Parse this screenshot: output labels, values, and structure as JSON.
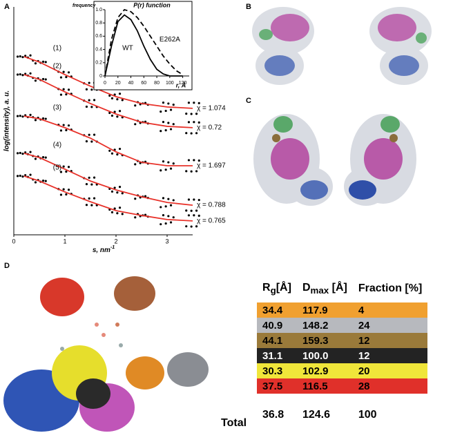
{
  "panels": {
    "a": "A",
    "b": "B",
    "c": "C",
    "d": "D"
  },
  "chart_data": [
    {
      "type": "line",
      "x_label": "s, nm",
      "x_label_sup": "-1",
      "y_label": "log(intensity), a. u.",
      "xlim": [
        0,
        3.5
      ],
      "xticks": [
        0,
        1,
        2,
        3
      ],
      "ylim": [
        0,
        10
      ],
      "x": [
        0.2,
        0.5,
        1,
        1.5,
        2,
        2.5,
        3,
        3.5
      ],
      "series": [
        {
          "name": "(1)",
          "chi": "χ = 1.074",
          "color": "#e8322a",
          "values": [
            7.82,
            7.58,
            7.03,
            6.52,
            6.06,
            5.76,
            5.61,
            5.55
          ]
        },
        {
          "name": "(2)",
          "chi": "χ = 0.72",
          "color": "#e8322a",
          "values": [
            7.03,
            6.82,
            6.27,
            5.76,
            5.3,
            4.94,
            4.76,
            4.7
          ]
        },
        {
          "name": "(3)",
          "chi": "χ = 1.697",
          "color": "#e8322a",
          "values": [
            5.21,
            5.09,
            4.7,
            4.24,
            3.64,
            3.18,
            3.03,
            3.03
          ]
        },
        {
          "name": "(4)",
          "chi": "χ = 0.788",
          "color": "#e8322a",
          "values": [
            3.58,
            3.39,
            2.88,
            2.36,
            1.97,
            1.67,
            1.42,
            1.3
          ]
        },
        {
          "name": "(5)",
          "chi": "χ = 0.765",
          "color": "#e8322a",
          "values": [
            2.58,
            2.36,
            1.88,
            1.45,
            1.06,
            0.85,
            0.67,
            0.61
          ]
        }
      ]
    },
    {
      "type": "line",
      "title": "P(r) function",
      "x_label": "r, Å",
      "y_label": "frequency",
      "xlim": [
        0,
        130
      ],
      "xticks": [
        0,
        20,
        40,
        60,
        80,
        100,
        120
      ],
      "ylim": [
        0,
        1
      ],
      "yticks": [
        0,
        {
          "value": 0.2,
          "label": "0.2"
        },
        {
          "value": 0.4,
          "label": "0.4"
        },
        {
          "value": 0.6,
          "label": "0.6"
        },
        {
          "value": 0.8,
          "label": "0.8"
        },
        {
          "value": 1,
          "label": "1.0"
        }
      ],
      "x": [
        0,
        10,
        20,
        30,
        40,
        50,
        60,
        70,
        80,
        90,
        100,
        110,
        120
      ],
      "series": [
        {
          "name": "WT",
          "color": "#000000",
          "dash": "none",
          "values": [
            0,
            0.45,
            0.82,
            0.92,
            0.85,
            0.68,
            0.45,
            0.25,
            0.1,
            0.03,
            0,
            0,
            0
          ]
        },
        {
          "name": "E262A",
          "color": "#000000",
          "dash": "7 4",
          "values": [
            0,
            0.55,
            0.88,
            1,
            0.97,
            0.88,
            0.75,
            0.6,
            0.45,
            0.3,
            0.18,
            0.08,
            0.02
          ]
        }
      ]
    }
  ],
  "table": {
    "header": [
      {
        "main": "R",
        "sub": "g",
        "rest": "[Å]"
      },
      {
        "main": "D",
        "sub": "max",
        "rest": " [Å]"
      },
      {
        "main": "Fraction [%]"
      }
    ],
    "rows": [
      {
        "color": "#f0a030",
        "text_color": "#000",
        "cells": [
          "34.4",
          "117.9",
          "4"
        ]
      },
      {
        "color": "#b7b9be",
        "text_color": "#000",
        "cells": [
          "40.9",
          "148.2",
          "24"
        ]
      },
      {
        "color": "#9a7a3a",
        "text_color": "#000",
        "cells": [
          "44.1",
          "159.3",
          "12"
        ]
      },
      {
        "color": "#232323",
        "text_color": "#fff",
        "cells": [
          "31.1",
          "100.0",
          "12"
        ]
      },
      {
        "color": "#f0e63a",
        "text_color": "#000",
        "cells": [
          "30.3",
          "102.9",
          "20"
        ]
      },
      {
        "color": "#e0302a",
        "text_color": "#000",
        "cells": [
          "37.5",
          "116.5",
          "28"
        ]
      }
    ],
    "total": [
      "Total",
      "36.8",
      "124.6",
      "100"
    ]
  }
}
